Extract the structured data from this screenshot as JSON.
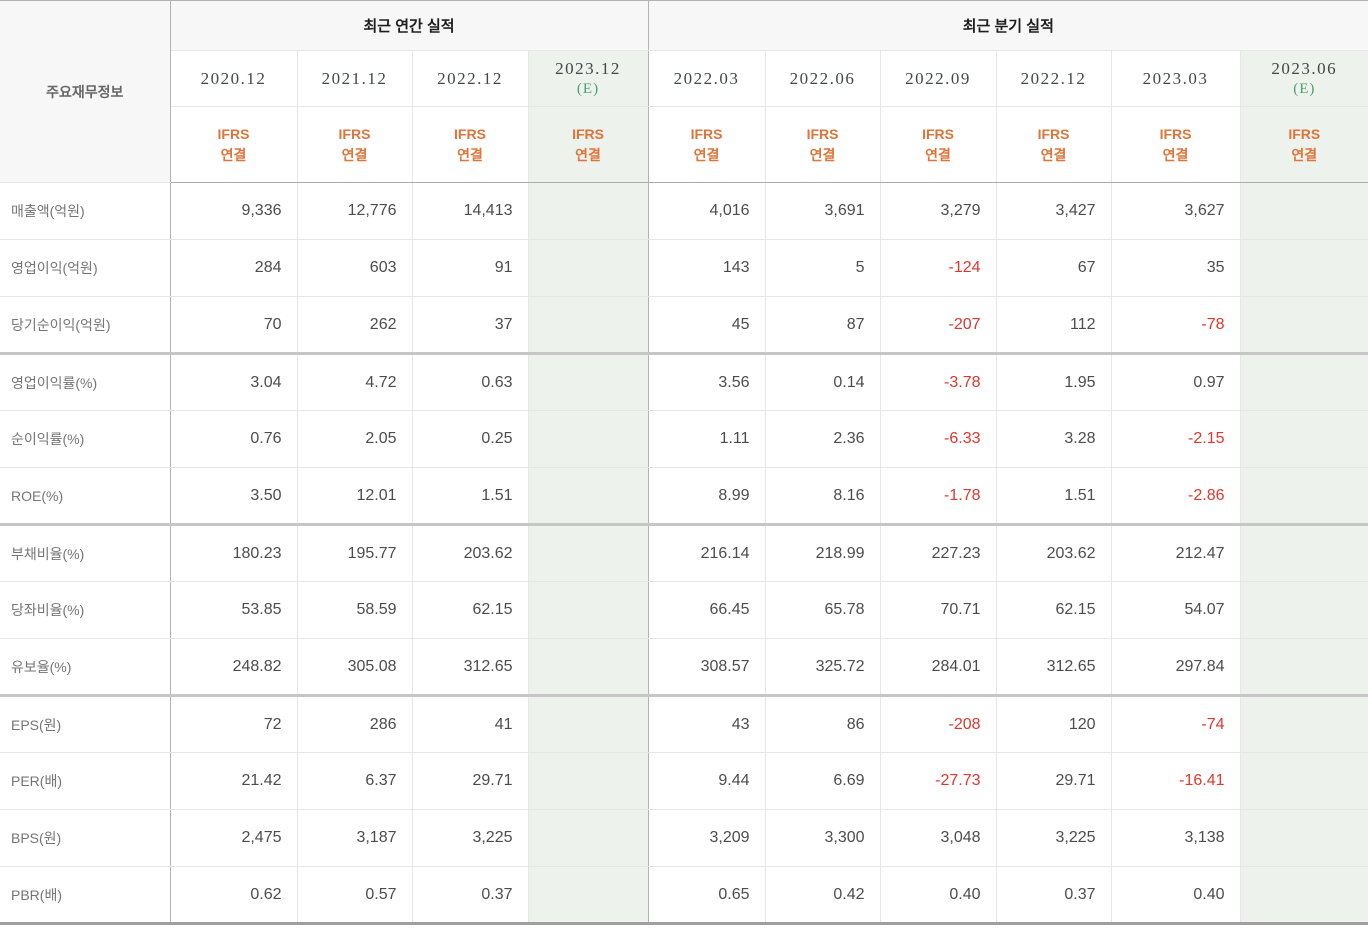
{
  "table": {
    "corner_label": "주요재무정보",
    "groups": [
      {
        "label": "최근 연간 실적",
        "col_count": 4
      },
      {
        "label": "최근 분기 실적",
        "col_count": 6
      }
    ],
    "estimate_suffix": "(E)",
    "ifrs_label": {
      "line1": "IFRS",
      "line2": "연결"
    },
    "columns": [
      {
        "date": "2020.12",
        "estimate": false
      },
      {
        "date": "2021.12",
        "estimate": false
      },
      {
        "date": "2022.12",
        "estimate": false
      },
      {
        "date": "2023.12",
        "estimate": true
      },
      {
        "date": "2022.03",
        "estimate": false
      },
      {
        "date": "2022.06",
        "estimate": false
      },
      {
        "date": "2022.09",
        "estimate": false
      },
      {
        "date": "2022.12",
        "estimate": false
      },
      {
        "date": "2023.03",
        "estimate": false
      },
      {
        "date": "2023.06",
        "estimate": true
      }
    ],
    "rows": [
      {
        "label": "매출액(억원)",
        "group_end": false,
        "values": [
          "9,336",
          "12,776",
          "14,413",
          "",
          "4,016",
          "3,691",
          "3,279",
          "3,427",
          "3,627",
          ""
        ]
      },
      {
        "label": "영업이익(억원)",
        "group_end": false,
        "values": [
          "284",
          "603",
          "91",
          "",
          "143",
          "5",
          "-124",
          "67",
          "35",
          ""
        ]
      },
      {
        "label": "당기순이익(억원)",
        "group_end": true,
        "values": [
          "70",
          "262",
          "37",
          "",
          "45",
          "87",
          "-207",
          "112",
          "-78",
          ""
        ]
      },
      {
        "label": "영업이익률(%)",
        "group_end": false,
        "values": [
          "3.04",
          "4.72",
          "0.63",
          "",
          "3.56",
          "0.14",
          "-3.78",
          "1.95",
          "0.97",
          ""
        ]
      },
      {
        "label": "순이익률(%)",
        "group_end": false,
        "values": [
          "0.76",
          "2.05",
          "0.25",
          "",
          "1.11",
          "2.36",
          "-6.33",
          "3.28",
          "-2.15",
          ""
        ]
      },
      {
        "label": "ROE(%)",
        "group_end": true,
        "values": [
          "3.50",
          "12.01",
          "1.51",
          "",
          "8.99",
          "8.16",
          "-1.78",
          "1.51",
          "-2.86",
          ""
        ]
      },
      {
        "label": "부채비율(%)",
        "group_end": false,
        "values": [
          "180.23",
          "195.77",
          "203.62",
          "",
          "216.14",
          "218.99",
          "227.23",
          "203.62",
          "212.47",
          ""
        ]
      },
      {
        "label": "당좌비율(%)",
        "group_end": false,
        "values": [
          "53.85",
          "58.59",
          "62.15",
          "",
          "66.45",
          "65.78",
          "70.71",
          "62.15",
          "54.07",
          ""
        ]
      },
      {
        "label": "유보율(%)",
        "group_end": true,
        "values": [
          "248.82",
          "305.08",
          "312.65",
          "",
          "308.57",
          "325.72",
          "284.01",
          "312.65",
          "297.84",
          ""
        ]
      },
      {
        "label": "EPS(원)",
        "group_end": false,
        "values": [
          "72",
          "286",
          "41",
          "",
          "43",
          "86",
          "-208",
          "120",
          "-74",
          ""
        ]
      },
      {
        "label": "PER(배)",
        "group_end": false,
        "values": [
          "21.42",
          "6.37",
          "29.71",
          "",
          "9.44",
          "6.69",
          "-27.73",
          "29.71",
          "-16.41",
          ""
        ]
      },
      {
        "label": "BPS(원)",
        "group_end": false,
        "values": [
          "2,475",
          "3,187",
          "3,225",
          "",
          "3,209",
          "3,300",
          "3,048",
          "3,225",
          "3,138",
          ""
        ]
      },
      {
        "label": "PBR(배)",
        "group_end": false,
        "values": [
          "0.62",
          "0.57",
          "0.37",
          "",
          "0.65",
          "0.42",
          "0.40",
          "0.37",
          "0.40",
          ""
        ]
      }
    ]
  },
  "colors": {
    "negative_value": "#e0362c",
    "ifrs_orange": "#df7438",
    "estimate_green": "#4d9e6b",
    "estimate_bg": "#edf2ec",
    "header_bg": "#f7f7f7"
  }
}
